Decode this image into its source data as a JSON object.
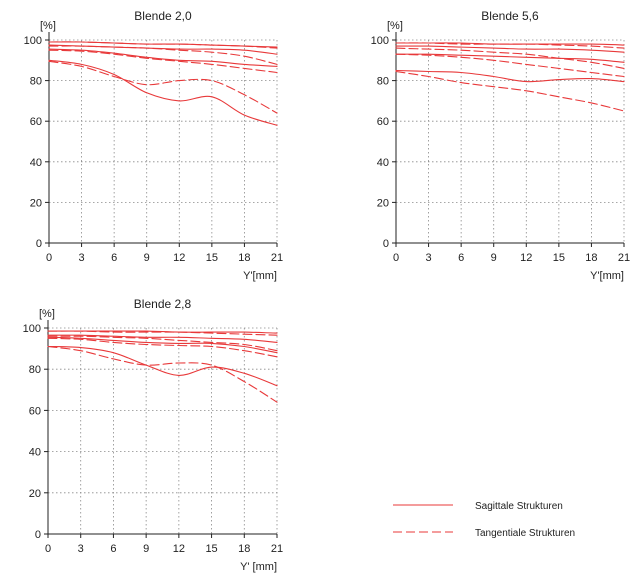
{
  "chart_data": [
    {
      "type": "line",
      "title": "Blende 2,0",
      "ylabel": "[%]",
      "xlabel": "Y'[mm]",
      "x_ticks": [
        0,
        3,
        6,
        9,
        12,
        15,
        18,
        21
      ],
      "y_ticks": [
        0,
        20,
        40,
        60,
        80,
        100
      ],
      "xlim": [
        0,
        21
      ],
      "ylim": [
        0,
        100
      ],
      "grid": true,
      "series": [
        {
          "style": "solid",
          "x": [
            0,
            3,
            6,
            9,
            12,
            15,
            18,
            21
          ],
          "y": [
            99,
            99,
            98.5,
            98,
            98,
            97.5,
            97,
            96.5
          ]
        },
        {
          "style": "dashed",
          "x": [
            0,
            3,
            6,
            9,
            12,
            15,
            18,
            21
          ],
          "y": [
            99,
            99,
            98.5,
            98,
            98,
            97.5,
            97,
            96
          ]
        },
        {
          "style": "solid",
          "x": [
            0,
            3,
            6,
            9,
            12,
            15,
            18,
            21
          ],
          "y": [
            97.5,
            97,
            96.5,
            96,
            95.5,
            95.5,
            95,
            93
          ]
        },
        {
          "style": "dashed",
          "x": [
            0,
            3,
            6,
            9,
            12,
            15,
            18,
            21
          ],
          "y": [
            97,
            97,
            96.5,
            96,
            95,
            94,
            92,
            88
          ]
        },
        {
          "style": "solid",
          "x": [
            0,
            3,
            6,
            9,
            12,
            15,
            18,
            21
          ],
          "y": [
            95.5,
            95,
            93.5,
            91.5,
            90,
            89.5,
            88,
            87
          ]
        },
        {
          "style": "dashed",
          "x": [
            0,
            3,
            6,
            9,
            12,
            15,
            18,
            21
          ],
          "y": [
            95,
            94.5,
            93,
            91,
            89.5,
            88,
            86,
            84
          ]
        },
        {
          "style": "solid",
          "x": [
            0,
            3,
            6,
            9,
            12,
            15,
            18,
            21
          ],
          "y": [
            90,
            88,
            83,
            74,
            70,
            72,
            63,
            58
          ]
        },
        {
          "style": "dashed",
          "x": [
            0,
            3,
            6,
            9,
            12,
            15,
            18,
            21
          ],
          "y": [
            89.5,
            87,
            82,
            78,
            80,
            80,
            73,
            64
          ]
        }
      ]
    },
    {
      "type": "line",
      "title": "Blende 5,6",
      "ylabel": "[%]",
      "xlabel": "Y'[mm]",
      "x_ticks": [
        0,
        3,
        6,
        9,
        12,
        15,
        18,
        21
      ],
      "y_ticks": [
        0,
        20,
        40,
        60,
        80,
        100
      ],
      "xlim": [
        0,
        21
      ],
      "ylim": [
        0,
        100
      ],
      "grid": true,
      "series": [
        {
          "style": "solid",
          "x": [
            0,
            3,
            6,
            9,
            12,
            15,
            18,
            21
          ],
          "y": [
            98.5,
            98.5,
            98.5,
            98,
            98,
            98,
            98,
            97.5
          ]
        },
        {
          "style": "dashed",
          "x": [
            0,
            3,
            6,
            9,
            12,
            15,
            18,
            21
          ],
          "y": [
            98.5,
            98.5,
            98,
            98,
            98,
            97.5,
            97,
            96
          ]
        },
        {
          "style": "solid",
          "x": [
            0,
            3,
            6,
            9,
            12,
            15,
            18,
            21
          ],
          "y": [
            97,
            97,
            96.5,
            96,
            95.5,
            95.5,
            95,
            94
          ]
        },
        {
          "style": "dashed",
          "x": [
            0,
            3,
            6,
            9,
            12,
            15,
            18,
            21
          ],
          "y": [
            96,
            95.5,
            95,
            94,
            93,
            91,
            89,
            86
          ]
        },
        {
          "style": "solid",
          "x": [
            0,
            3,
            6,
            9,
            12,
            15,
            18,
            21
          ],
          "y": [
            93,
            93,
            92.5,
            92,
            91.5,
            91,
            90.5,
            89
          ]
        },
        {
          "style": "dashed",
          "x": [
            0,
            3,
            6,
            9,
            12,
            15,
            18,
            21
          ],
          "y": [
            93,
            92.5,
            91.5,
            90,
            88,
            86,
            84,
            82
          ]
        },
        {
          "style": "solid",
          "x": [
            0,
            3,
            6,
            9,
            12,
            15,
            18,
            21
          ],
          "y": [
            85,
            84.5,
            84,
            82,
            79.5,
            80.5,
            81,
            79.5
          ]
        },
        {
          "style": "dashed",
          "x": [
            0,
            3,
            6,
            9,
            12,
            15,
            18,
            21
          ],
          "y": [
            84.5,
            82,
            79,
            77,
            75,
            72,
            69,
            65
          ]
        }
      ]
    },
    {
      "type": "line",
      "title": "Blende 2,8",
      "ylabel": "[%]",
      "xlabel": "Y' [mm]",
      "x_ticks": [
        0,
        3,
        6,
        9,
        12,
        15,
        18,
        21
      ],
      "y_ticks": [
        0,
        20,
        40,
        60,
        80,
        100
      ],
      "xlim": [
        0,
        21
      ],
      "ylim": [
        0,
        100
      ],
      "grid": true,
      "series": [
        {
          "style": "solid",
          "x": [
            0,
            3,
            6,
            9,
            12,
            15,
            18,
            21
          ],
          "y": [
            98.5,
            98.5,
            98.5,
            98.5,
            98,
            98,
            98,
            97.5
          ]
        },
        {
          "style": "dashed",
          "x": [
            0,
            3,
            6,
            9,
            12,
            15,
            18,
            21
          ],
          "y": [
            98.5,
            98.5,
            98,
            98,
            98,
            97.5,
            97,
            96.5
          ]
        },
        {
          "style": "solid",
          "x": [
            0,
            3,
            6,
            9,
            12,
            15,
            18,
            21
          ],
          "y": [
            96.5,
            96.5,
            96,
            95.5,
            95.5,
            95,
            94.5,
            93
          ]
        },
        {
          "style": "dashed",
          "x": [
            0,
            3,
            6,
            9,
            12,
            15,
            18,
            21
          ],
          "y": [
            96,
            96,
            95.5,
            95,
            94,
            93,
            92,
            89
          ]
        },
        {
          "style": "solid",
          "x": [
            0,
            3,
            6,
            9,
            12,
            15,
            18,
            21
          ],
          "y": [
            95.5,
            95,
            94,
            93,
            92.5,
            92.5,
            91,
            88
          ]
        },
        {
          "style": "dashed",
          "x": [
            0,
            3,
            6,
            9,
            12,
            15,
            18,
            21
          ],
          "y": [
            95,
            94.5,
            93,
            92,
            91.5,
            91,
            89,
            86
          ]
        },
        {
          "style": "solid",
          "x": [
            0,
            3,
            6,
            9,
            12,
            15,
            18,
            21
          ],
          "y": [
            91,
            90.5,
            88,
            82,
            77,
            81,
            78,
            72
          ]
        },
        {
          "style": "dashed",
          "x": [
            0,
            3,
            6,
            9,
            12,
            15,
            18,
            21
          ],
          "y": [
            91,
            89,
            85,
            82,
            83,
            82,
            74,
            64
          ]
        }
      ]
    }
  ],
  "legend": {
    "items": [
      {
        "label": "Sagittale Strukturen",
        "style": "solid"
      },
      {
        "label": "Tangentiale Strukturen",
        "style": "dashed"
      }
    ]
  },
  "colors": {
    "curve": "#e8393a",
    "axis": "#222222",
    "grid": "#8a8a8a"
  }
}
